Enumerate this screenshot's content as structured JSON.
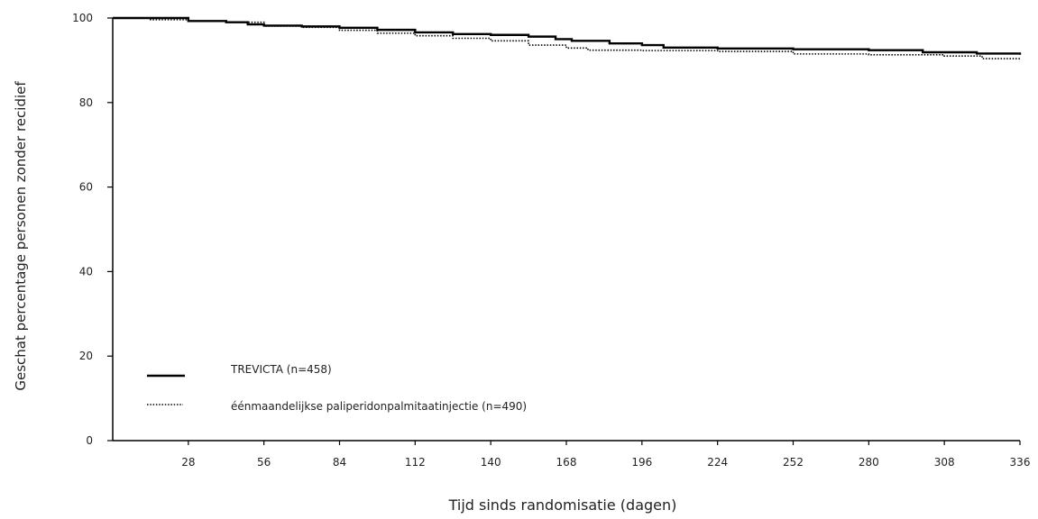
{
  "chart_data": {
    "type": "line",
    "title": "",
    "xlabel": "Tijd sinds randomisatie  (dagen)",
    "ylabel": "Geschat percentage  personen  zonder recidief",
    "xlim": [
      0,
      336
    ],
    "ylim": [
      0,
      100
    ],
    "x_ticks": [
      28,
      56,
      84,
      112,
      140,
      168,
      196,
      224,
      252,
      280,
      308,
      336
    ],
    "y_ticks": [
      0,
      20,
      40,
      60,
      80,
      100
    ],
    "grid": false,
    "legend_position": "bottom-left",
    "series": [
      {
        "name": "TREVICTA (n=458)",
        "style": "solid",
        "color": "#000000",
        "x": [
          0,
          14,
          28,
          42,
          50,
          56,
          70,
          84,
          98,
          112,
          126,
          140,
          154,
          164,
          170,
          184,
          196,
          204,
          224,
          252,
          280,
          300,
          320,
          336
        ],
        "y": [
          100,
          100,
          99.3,
          99,
          98.5,
          98.2,
          98,
          97.7,
          97.2,
          96.6,
          96.2,
          96,
          95.6,
          95,
          94.6,
          94,
          93.6,
          93,
          92.8,
          92.6,
          92.4,
          91.9,
          91.6,
          91.3
        ]
      },
      {
        "name": "éénmaandelijkse paliperidonpalmitaatinjectie (n=490)",
        "style": "dotted",
        "color": "#000000",
        "x": [
          0,
          14,
          28,
          42,
          56,
          70,
          84,
          98,
          112,
          126,
          140,
          154,
          168,
          176,
          196,
          224,
          252,
          280,
          308,
          322,
          336
        ],
        "y": [
          100,
          99.6,
          99.3,
          99,
          98.1,
          97.8,
          97.1,
          96.4,
          95.8,
          95.2,
          94.6,
          93.6,
          92.9,
          92.4,
          92.3,
          92.1,
          91.5,
          91.3,
          91,
          90.4,
          90
        ]
      }
    ]
  }
}
